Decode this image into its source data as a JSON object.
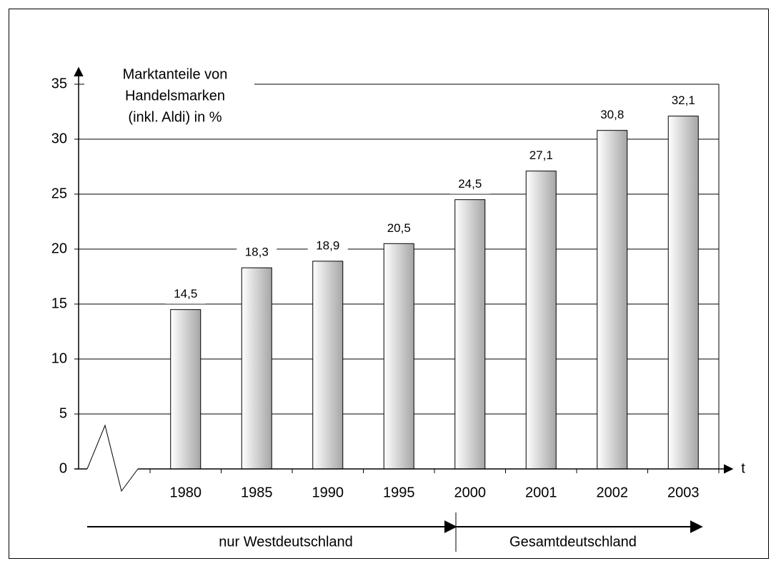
{
  "chart_data": {
    "type": "bar",
    "ylabel": [
      "Marktanteile von",
      "Handelsmarken",
      "(inkl. Aldi) in %"
    ],
    "xlabel": "t",
    "categories": [
      "1980",
      "1985",
      "1990",
      "1995",
      "2000",
      "2001",
      "2002",
      "2003"
    ],
    "values": [
      14.5,
      18.3,
      18.9,
      20.5,
      24.5,
      27.1,
      30.8,
      32.1
    ],
    "value_labels": [
      "14,5",
      "18,3",
      "18,9",
      "20,5",
      "24,5",
      "27,1",
      "30,8",
      "32,1"
    ],
    "color": "#a6a6a6",
    "ylim": [
      0,
      35
    ],
    "yticks": [
      0,
      5,
      10,
      15,
      20,
      25,
      30,
      35
    ],
    "grid": true,
    "regions": [
      "nur Westdeutschland",
      "Gesamtdeutschland"
    ]
  }
}
